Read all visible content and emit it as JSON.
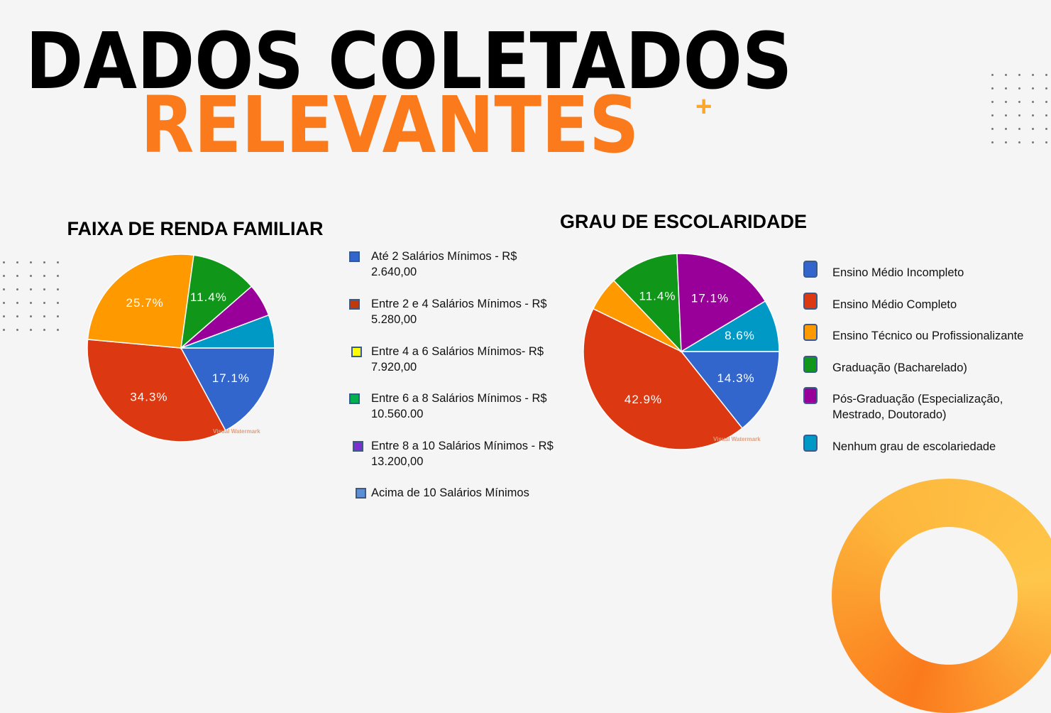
{
  "title": {
    "line1": "DADOS COLETADOS",
    "line2": "RELEVANTES",
    "plus": "+"
  },
  "colors": {
    "accent": "#fb7a1c",
    "accent2": "#fec64a"
  },
  "chart_data": [
    {
      "type": "pie",
      "title": "FAIXA DE RENDA FAMILIAR",
      "watermark": "Visual Watermark",
      "slices": [
        {
          "label": "17.1%",
          "value": 17.1,
          "color": "#3366cc"
        },
        {
          "label": "34.3%",
          "value": 34.3,
          "color": "#dc3912"
        },
        {
          "label": "25.7%",
          "value": 25.7,
          "color": "#ff9900"
        },
        {
          "label": "11.4%",
          "value": 11.4,
          "color": "#109618"
        },
        {
          "label": "",
          "value": 5.7,
          "color": "#990099"
        },
        {
          "label": "",
          "value": 5.7,
          "color": "#0099c6"
        }
      ],
      "legend": [
        {
          "line1": "Até 2 Salários Mínimos - R$",
          "line2": "2.640,00",
          "color": "#3366cc"
        },
        {
          "line1": "Entre 2 e 4 Salários Mínimos - R$",
          "line2": "5.280,00",
          "color": "#c0390b"
        },
        {
          "line1": "Entre 4 a 6 Salários Mínimos- R$",
          "line2": "7.920,00",
          "color": "#ffff00"
        },
        {
          "line1": "Entre 6 a 8 Salários Mínimos - R$",
          "line2": "10.560.00",
          "color": "#00b050"
        },
        {
          "line1": "Entre 8 a 10 Salários Mínimos - R$",
          "line2": "13.200,00",
          "color": "#7f2fd0"
        },
        {
          "line1": "Acima de 10 Salários Mínimos",
          "line2": "",
          "color": "#5b8fd6"
        }
      ]
    },
    {
      "type": "pie",
      "title": "GRAU DE ESCOLARIDADE",
      "watermark": "Visual Watermark",
      "slices": [
        {
          "label": "14.3%",
          "value": 14.3,
          "color": "#3366cc"
        },
        {
          "label": "42.9%",
          "value": 42.9,
          "color": "#dc3912"
        },
        {
          "label": "",
          "value": 5.7,
          "color": "#ff9900"
        },
        {
          "label": "11.4%",
          "value": 11.4,
          "color": "#109618"
        },
        {
          "label": "17.1%",
          "value": 17.1,
          "color": "#990099"
        },
        {
          "label": "8.6%",
          "value": 8.6,
          "color": "#0099c6"
        }
      ],
      "legend": [
        {
          "line1": "Ensino Médio Incompleto",
          "line2": "",
          "color": "#3366cc"
        },
        {
          "line1": "Ensino Médio Completo",
          "line2": "",
          "color": "#dc3912"
        },
        {
          "line1": "Ensino Técnico ou Profissionalizante",
          "line2": "",
          "color": "#ff9900"
        },
        {
          "line1": "Graduação (Bacharelado)",
          "line2": "",
          "color": "#109618"
        },
        {
          "line1": "Pós-Graduação (Especialização,",
          "line2": "Mestrado, Doutorado)",
          "color": "#990099"
        },
        {
          "line1": "Nenhum grau de escolariedade",
          "line2": "",
          "color": "#0099c6"
        }
      ]
    }
  ]
}
